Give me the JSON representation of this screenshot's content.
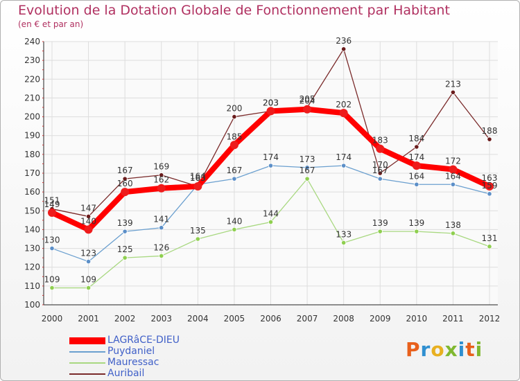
{
  "header": {
    "title": "Evolution de la Dotation Globale de Fonctionnement par Habitant",
    "subtitle": "(en € et par an)"
  },
  "brand": {
    "text": "Proxiti",
    "letter_colors": [
      "#e8601c",
      "#2f8fd0",
      "#e8b020",
      "#80b830",
      "#2f8fd0",
      "#e8601c",
      "#80b830"
    ]
  },
  "chart_data": {
    "type": "line",
    "title": "Evolution de la Dotation Globale de Fonctionnement par Habitant",
    "subtitle": "(en € et par an)",
    "xlabel": "",
    "ylabel": "",
    "x": [
      "2000",
      "2001",
      "2002",
      "2003",
      "2004",
      "2005",
      "2006",
      "2007",
      "2008",
      "2009",
      "2010",
      "2011",
      "2012"
    ],
    "ylim": [
      100,
      240
    ],
    "yticks": [
      100,
      110,
      120,
      130,
      140,
      150,
      160,
      170,
      180,
      190,
      200,
      210,
      220,
      230,
      240
    ],
    "grid": true,
    "legend_position": "bottom-left",
    "series": [
      {
        "name": "LAGRâCE-DIEU",
        "color": "#ff0000",
        "marker": "#ee1c1c",
        "values": [
          149,
          140,
          160,
          162,
          163,
          185,
          203,
          204,
          202,
          183,
          174,
          172,
          163
        ]
      },
      {
        "name": "Puydaniel",
        "color": "#6a9fcf",
        "marker": "#5c8fc8",
        "values": [
          130,
          123,
          139,
          141,
          164,
          167,
          174,
          173,
          174,
          167,
          164,
          164,
          159
        ]
      },
      {
        "name": "Mauressac",
        "color": "#a8d880",
        "marker": "#8fcf50",
        "values": [
          109,
          109,
          125,
          126,
          135,
          140,
          144,
          167,
          133,
          139,
          139,
          138,
          131
        ]
      },
      {
        "name": "Auribail",
        "color": "#7a2a2a",
        "marker": "#6a1c1c",
        "values": [
          151,
          147,
          167,
          169,
          163,
          200,
          203,
          205,
          236,
          170,
          184,
          213,
          188
        ]
      }
    ]
  }
}
